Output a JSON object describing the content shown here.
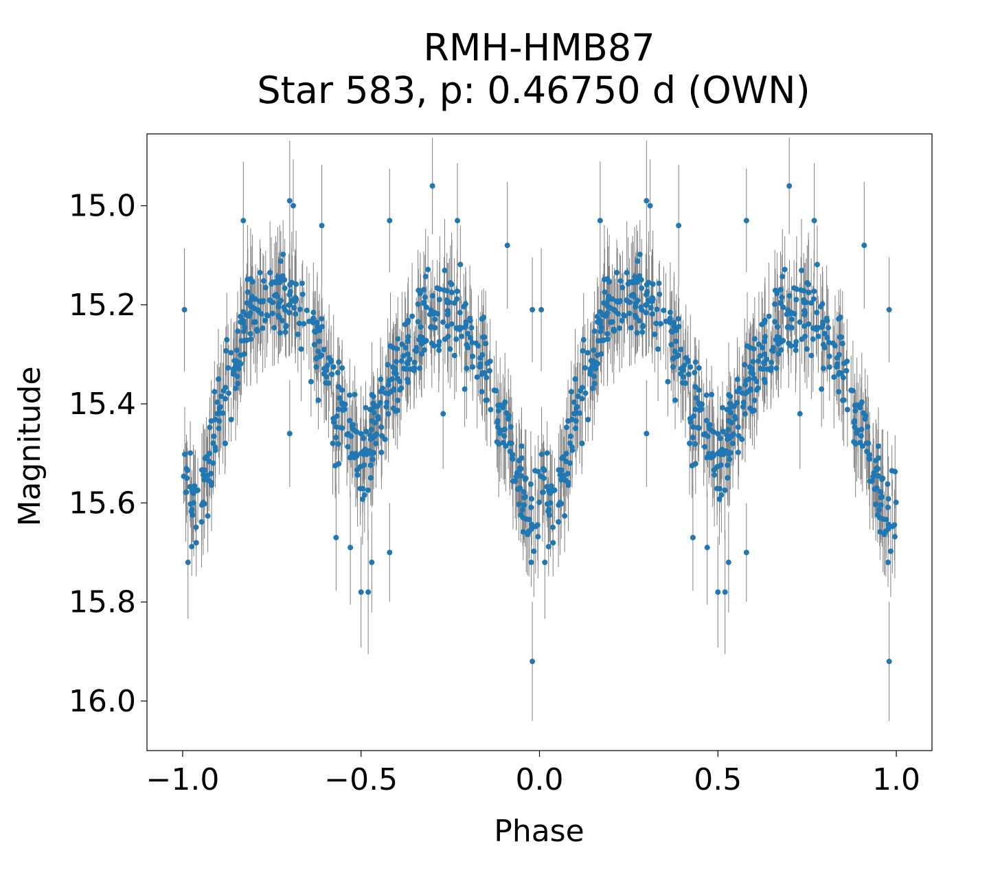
{
  "chart_data": {
    "type": "scatter",
    "title": [
      "RMH-HMB87",
      "Star 583, p: 0.46750 d (OWN)"
    ],
    "xlabel": "Phase",
    "ylabel": "Magnitude",
    "xlim": [
      -1.1,
      1.1
    ],
    "ylim": [
      16.1,
      14.855
    ],
    "y_inverted": true,
    "xticks": [
      -1.0,
      -0.5,
      0.0,
      0.5,
      1.0
    ],
    "xtick_labels": [
      "−1.0",
      "−0.5",
      "0.0",
      "0.5",
      "1.0"
    ],
    "yticks": [
      15.0,
      15.2,
      15.4,
      15.6,
      15.8,
      16.0
    ],
    "ytick_labels": [
      "15.0",
      "15.2",
      "15.4",
      "15.6",
      "15.8",
      "16.0"
    ],
    "grid": false,
    "legend": "none",
    "colors": {
      "marker": "#1f77b4",
      "errorbar": "#808080"
    },
    "series": [
      {
        "name": "Star 583",
        "marker": "circle",
        "errorbars": "vertical",
        "points_described": "phase-folded light curve over two cycles (-1.0 to 1.0), ~1100 points per cycle, mirrored every 1.0 in phase",
        "phase": [
          -1.0,
          -0.98,
          -0.96,
          -0.94,
          -0.92,
          -0.9,
          -0.88,
          -0.86,
          -0.84,
          -0.82,
          -0.8,
          -0.78,
          -0.76,
          -0.74,
          -0.72,
          -0.7,
          -0.68,
          -0.66,
          -0.64,
          -0.62,
          -0.6,
          -0.58,
          -0.56,
          -0.54,
          -0.52,
          -0.5,
          -0.48,
          -0.46,
          -0.44,
          -0.42,
          -0.4,
          -0.38,
          -0.36,
          -0.34,
          -0.32,
          -0.3,
          -0.28,
          -0.26,
          -0.24,
          -0.22,
          -0.2,
          -0.18,
          -0.16,
          -0.14,
          -0.12,
          -0.1,
          -0.08,
          -0.06,
          -0.04,
          -0.02,
          0.0
        ],
        "magnitude": [
          15.53,
          15.59,
          15.63,
          15.56,
          15.49,
          15.44,
          15.39,
          15.34,
          15.29,
          15.25,
          15.21,
          15.19,
          15.18,
          15.17,
          15.18,
          15.19,
          15.21,
          15.23,
          15.25,
          15.28,
          15.33,
          15.38,
          15.42,
          15.45,
          15.48,
          15.51,
          15.5,
          15.46,
          15.41,
          15.37,
          15.34,
          15.31,
          15.28,
          15.25,
          15.23,
          15.22,
          15.21,
          15.21,
          15.22,
          15.23,
          15.25,
          15.28,
          15.31,
          15.35,
          15.4,
          15.45,
          15.5,
          15.55,
          15.59,
          15.62,
          15.59
        ],
        "outliers": [
          [
            -0.995,
            15.21
          ],
          [
            -0.985,
            15.72
          ],
          [
            -0.7,
            14.99
          ],
          [
            -0.69,
            15.0
          ],
          [
            -0.83,
            15.03
          ],
          [
            -0.3,
            14.96
          ],
          [
            -0.42,
            15.03
          ],
          [
            -0.02,
            15.21
          ],
          [
            -0.57,
            15.67
          ],
          [
            -0.5,
            15.78
          ],
          [
            -0.48,
            15.78
          ],
          [
            -0.53,
            15.69
          ],
          [
            -0.47,
            15.72
          ],
          [
            -0.02,
            15.92
          ],
          [
            -0.7,
            15.46
          ],
          [
            -0.61,
            15.04
          ],
          [
            -0.23,
            15.03
          ],
          [
            -0.09,
            15.08
          ],
          [
            -0.42,
            15.7
          ],
          [
            -0.27,
            15.42
          ]
        ]
      }
    ]
  }
}
